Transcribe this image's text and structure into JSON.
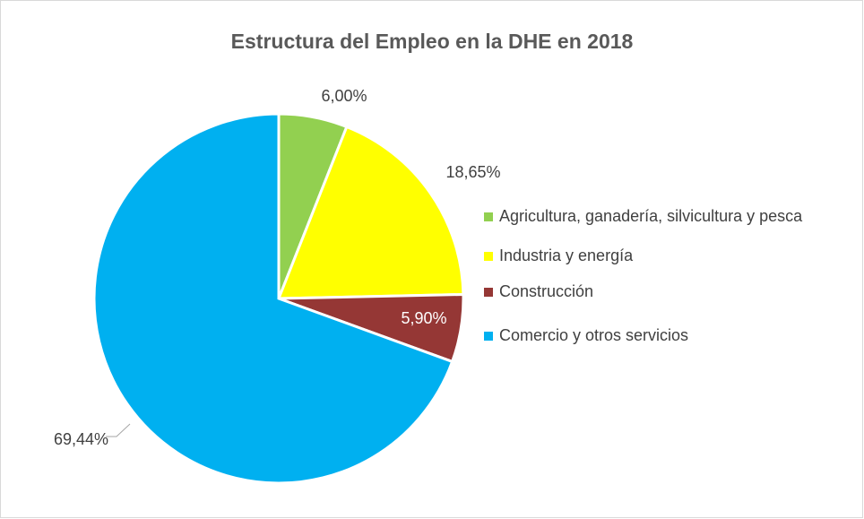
{
  "chart_data": {
    "type": "pie",
    "title": "Estructura del Empleo en la DHE en 2018",
    "categories": [
      "Agricultura, ganadería, silvicultura y pesca",
      "Industria y energía",
      "Construcción",
      "Comercio y otros servicios"
    ],
    "values": [
      6.0,
      18.65,
      5.9,
      69.44
    ],
    "value_labels": [
      "6,00%",
      "18,65%",
      "5,90%",
      "69,44%"
    ],
    "colors": [
      "#92d050",
      "#ffff00",
      "#953735",
      "#00b0f0"
    ],
    "legend": "right"
  }
}
